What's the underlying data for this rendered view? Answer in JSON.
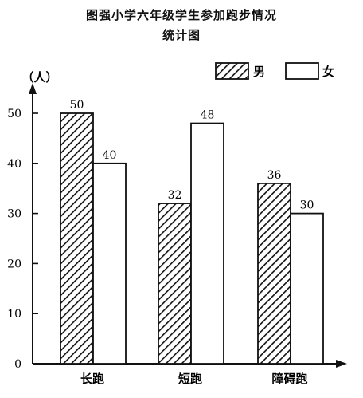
{
  "chart_data": {
    "type": "bar",
    "title": "图强小学六年级学生参加跑步情况",
    "subtitle": "统计图",
    "ylabel": "（人）",
    "xlabel": "",
    "categories": [
      "长跑",
      "短跑",
      "障碍跑"
    ],
    "series": [
      {
        "name": "男",
        "values": [
          50,
          32,
          36
        ],
        "fill": "hatched"
      },
      {
        "name": "女",
        "values": [
          40,
          48,
          30
        ],
        "fill": "white"
      }
    ],
    "ylim": [
      0,
      55
    ],
    "yticks": [
      0,
      10,
      20,
      30,
      40,
      50
    ],
    "grid": false,
    "legend_position": "top-right",
    "data_labels": true
  }
}
